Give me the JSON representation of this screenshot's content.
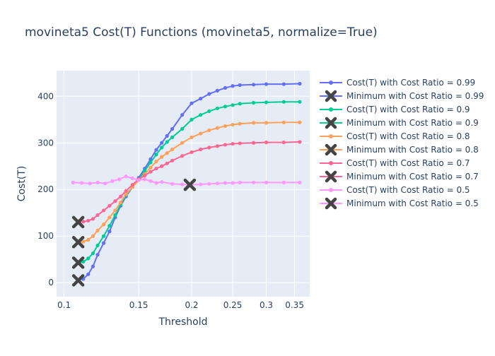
{
  "chart_data": {
    "type": "line",
    "title": "movineta5 Cost(T) Functions (movineta5, normalize=True)",
    "xlabel": "Threshold",
    "ylabel": "Cost(T)",
    "x_scale": "log",
    "xlim": [
      0.096,
      0.38
    ],
    "ylim": [
      -30,
      455
    ],
    "x_ticks": [
      0.1,
      0.15,
      0.2,
      0.25,
      0.3,
      0.35
    ],
    "x_tick_labels": [
      "0.1",
      "0.15",
      "0.2",
      "0.25",
      "0.3",
      "0.35"
    ],
    "y_ticks": [
      0,
      100,
      200,
      300,
      400
    ],
    "y_tick_labels": [
      "0",
      "100",
      "200",
      "300",
      "400"
    ],
    "grid": true,
    "legend_position": "right",
    "background": "#e5ecf6",
    "series": [
      {
        "name": "Cost(T) with Cost Ratio = 0.99",
        "color": "#636efa",
        "x": [
          0.108,
          0.111,
          0.114,
          0.117,
          0.12,
          0.124,
          0.128,
          0.132,
          0.136,
          0.14,
          0.145,
          0.15,
          0.155,
          0.16,
          0.165,
          0.17,
          0.175,
          0.18,
          0.19,
          0.2,
          0.21,
          0.22,
          0.23,
          0.24,
          0.25,
          0.26,
          0.28,
          0.3,
          0.33,
          0.36
        ],
        "y": [
          5,
          8,
          18,
          35,
          60,
          85,
          110,
          140,
          165,
          185,
          205,
          225,
          245,
          265,
          285,
          300,
          315,
          330,
          360,
          385,
          395,
          405,
          412,
          418,
          422,
          424,
          425,
          426,
          426,
          427
        ],
        "min": {
          "name": "Minimum with Cost Ratio = 0.99",
          "x": 0.108,
          "y": 5
        }
      },
      {
        "name": "Cost(T) with Cost Ratio = 0.9",
        "color": "#00cc96",
        "x": [
          0.108,
          0.111,
          0.114,
          0.117,
          0.12,
          0.124,
          0.128,
          0.132,
          0.136,
          0.14,
          0.145,
          0.15,
          0.155,
          0.16,
          0.165,
          0.17,
          0.175,
          0.18,
          0.19,
          0.2,
          0.21,
          0.22,
          0.23,
          0.24,
          0.25,
          0.26,
          0.28,
          0.3,
          0.33,
          0.36
        ],
        "y": [
          43,
          45,
          52,
          63,
          80,
          100,
          122,
          145,
          168,
          188,
          205,
          222,
          240,
          258,
          275,
          290,
          302,
          312,
          330,
          350,
          360,
          368,
          374,
          378,
          381,
          384,
          386,
          387,
          388,
          388
        ],
        "min": {
          "name": "Minimum with Cost Ratio = 0.9",
          "x": 0.108,
          "y": 43
        }
      },
      {
        "name": "Cost(T) with Cost Ratio = 0.8",
        "color": "#fea15a",
        "x": [
          0.108,
          0.111,
          0.114,
          0.117,
          0.12,
          0.124,
          0.128,
          0.132,
          0.136,
          0.14,
          0.145,
          0.15,
          0.155,
          0.16,
          0.165,
          0.17,
          0.175,
          0.18,
          0.19,
          0.2,
          0.21,
          0.22,
          0.23,
          0.24,
          0.25,
          0.26,
          0.28,
          0.3,
          0.33,
          0.36
        ],
        "y": [
          87,
          88,
          92,
          100,
          112,
          125,
          140,
          155,
          172,
          190,
          205,
          220,
          233,
          247,
          260,
          270,
          278,
          286,
          300,
          312,
          320,
          327,
          332,
          336,
          339,
          341,
          343,
          343,
          344,
          344
        ],
        "min": {
          "name": "Minimum with Cost Ratio = 0.8",
          "x": 0.108,
          "y": 87
        }
      },
      {
        "name": "Cost(T) with Cost Ratio = 0.7",
        "color": "#ff6692",
        "x": [
          0.108,
          0.111,
          0.114,
          0.117,
          0.12,
          0.124,
          0.128,
          0.132,
          0.136,
          0.14,
          0.145,
          0.15,
          0.155,
          0.16,
          0.165,
          0.17,
          0.175,
          0.18,
          0.19,
          0.2,
          0.21,
          0.22,
          0.23,
          0.24,
          0.25,
          0.26,
          0.28,
          0.3,
          0.33,
          0.36
        ],
        "y": [
          130,
          131,
          133,
          137,
          145,
          155,
          165,
          175,
          185,
          197,
          210,
          222,
          230,
          238,
          245,
          250,
          256,
          262,
          272,
          280,
          286,
          290,
          293,
          296,
          298,
          299,
          300,
          301,
          301,
          302
        ],
        "min": {
          "name": "Minimum with Cost Ratio = 0.7",
          "x": 0.108,
          "y": 130
        }
      },
      {
        "name": "Cost(T) with Cost Ratio = 0.5",
        "color": "#ff97ff",
        "x": [
          0.105,
          0.11,
          0.115,
          0.12,
          0.125,
          0.13,
          0.135,
          0.14,
          0.145,
          0.15,
          0.155,
          0.16,
          0.165,
          0.17,
          0.18,
          0.19,
          0.2,
          0.21,
          0.22,
          0.23,
          0.24,
          0.25,
          0.26,
          0.28,
          0.3,
          0.33,
          0.36
        ],
        "y": [
          215,
          214,
          213,
          215,
          213,
          218,
          222,
          228,
          224,
          220,
          222,
          218,
          214,
          216,
          212,
          211,
          210,
          211,
          212,
          213,
          214,
          214,
          215,
          215,
          215,
          215,
          215
        ],
        "min": {
          "name": "Minimum with Cost Ratio = 0.5",
          "x": 0.198,
          "y": 210
        }
      }
    ]
  }
}
